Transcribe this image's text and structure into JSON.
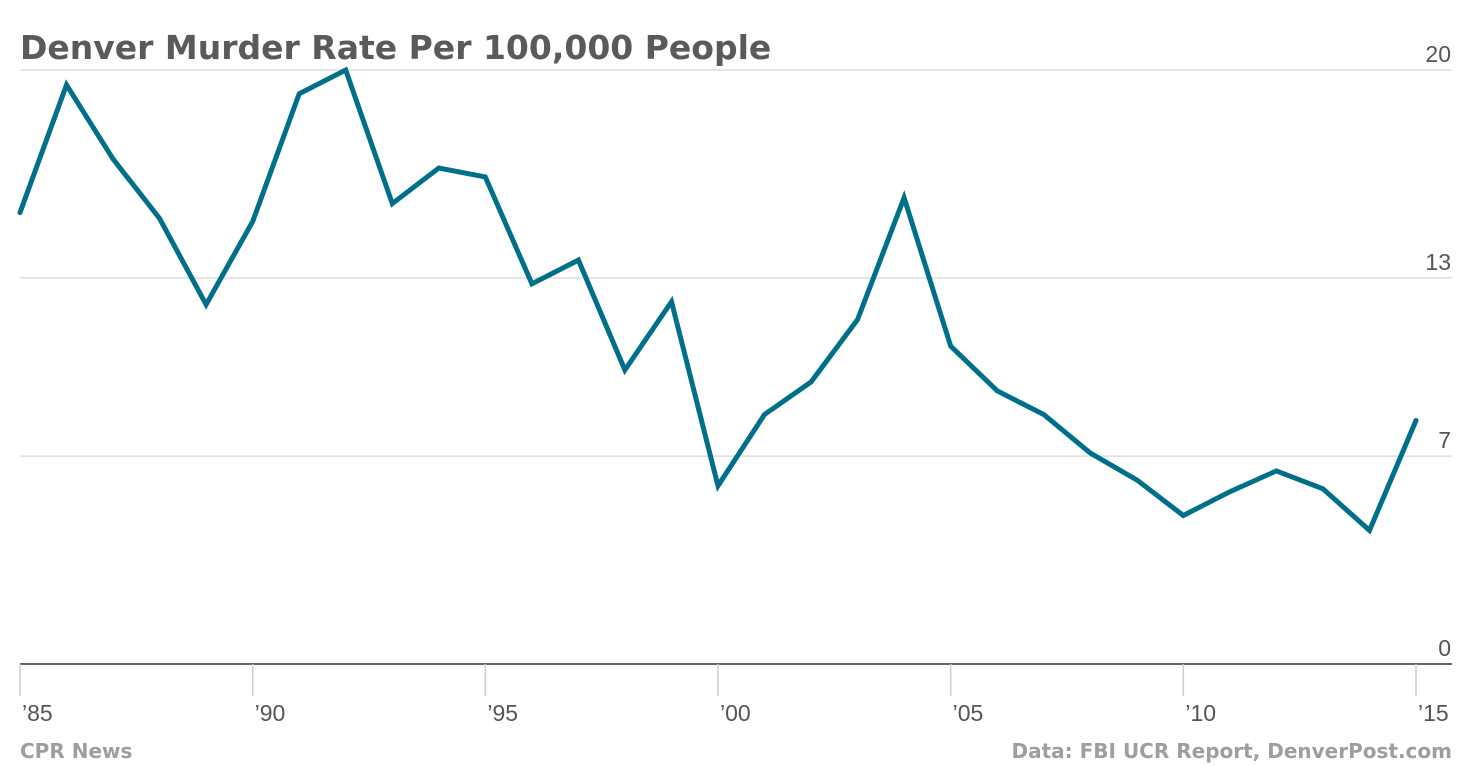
{
  "chart_data": {
    "type": "line",
    "title": "Denver Murder Rate Per 100,000 People",
    "xlabel": "",
    "ylabel": "",
    "ylim": [
      0,
      20
    ],
    "yticks": [
      0,
      7,
      13,
      20
    ],
    "y_tick_labels": [
      "0",
      "7",
      "13",
      "20"
    ],
    "x_ticks": [
      1985,
      1990,
      1995,
      2000,
      2005,
      2010,
      2015
    ],
    "x_tick_labels": [
      "’85",
      "’90",
      "’95",
      "’00",
      "’05",
      "’10",
      "’15"
    ],
    "grid": true,
    "y_axis_position": "right",
    "series": [
      {
        "color": "#00708a",
        "x": [
          1985,
          1986,
          1987,
          1988,
          1989,
          1990,
          1991,
          1992,
          1993,
          1994,
          1995,
          1996,
          1997,
          1998,
          1999,
          2000,
          2001,
          2002,
          2003,
          2004,
          2005,
          2006,
          2007,
          2008,
          2009,
          2010,
          2011,
          2012,
          2013,
          2014,
          2015
        ],
        "values": [
          15.2,
          19.5,
          17.0,
          15.0,
          12.1,
          14.9,
          19.2,
          20.0,
          15.5,
          16.7,
          16.4,
          12.8,
          13.6,
          9.9,
          12.2,
          6.0,
          8.4,
          9.5,
          11.6,
          15.7,
          10.7,
          9.2,
          8.4,
          7.1,
          6.2,
          5.0,
          5.8,
          6.5,
          5.9,
          4.5,
          8.2
        ]
      }
    ],
    "source": "Data: FBI UCR Report, DenverPost.com",
    "credit": "CPR News"
  }
}
